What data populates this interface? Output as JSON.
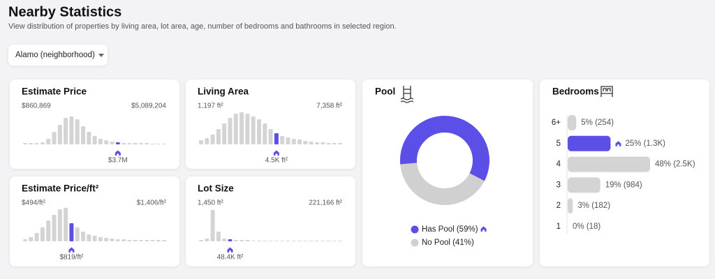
{
  "header": {
    "title": "Nearby Statistics",
    "subtitle": "View distribution of properties by living area, lot area, age, number of bedrooms and bathrooms in selected region."
  },
  "dropdown": {
    "label": "Alamo (neighborhood)"
  },
  "colors": {
    "highlight": "#5b4fe8",
    "base": "#d4d4d4"
  },
  "histograms": [
    {
      "title": "Estimate Price",
      "min_label": "$860,869",
      "max_label": "$5,089,204",
      "marker_label": "$3.7M",
      "highlight": 16,
      "values": [
        2,
        2,
        2,
        3,
        8,
        18,
        28,
        38,
        40,
        36,
        26,
        18,
        12,
        8,
        6,
        4,
        3,
        2,
        2,
        2,
        2,
        2,
        1,
        1,
        1
      ]
    },
    {
      "title": "Living Area",
      "min_label": "1,197 ft²",
      "max_label": "7,358 ft²",
      "marker_label": "4.5K ft²",
      "highlight": 13,
      "values": [
        6,
        9,
        14,
        22,
        30,
        38,
        44,
        46,
        44,
        40,
        36,
        30,
        22,
        16,
        12,
        10,
        8,
        7,
        5,
        4,
        3,
        3,
        2,
        2,
        2
      ]
    },
    {
      "title": "Estimate Price/ft²",
      "min_label": "$494/ft²",
      "max_label": "$1,406/ft²",
      "marker_label": "$819/ft²",
      "highlight": 8,
      "values": [
        3,
        6,
        12,
        20,
        30,
        38,
        46,
        48,
        26,
        20,
        14,
        10,
        8,
        6,
        5,
        4,
        3,
        3,
        2,
        2,
        2,
        2,
        2,
        2,
        2
      ]
    },
    {
      "title": "Lot Size",
      "min_label": "1,450 ft²",
      "max_label": "221,166 ft²",
      "marker_label": "48.4K ft²",
      "highlight": 5,
      "values": [
        2,
        4,
        45,
        14,
        4,
        3,
        2,
        2,
        2,
        1,
        1,
        1,
        1,
        1,
        1,
        1,
        1,
        1,
        1,
        1,
        1,
        1,
        1,
        1,
        1
      ]
    }
  ],
  "pool": {
    "title": "Pool",
    "values": [
      59,
      41
    ],
    "labels": [
      "Has Pool (59%)",
      "No Pool (41%)"
    ],
    "colors": [
      "#5b4fe8",
      "#d0d0d0"
    ],
    "highlight": 0
  },
  "bedrooms": {
    "title": "Bedrooms",
    "categories": [
      "6+",
      "5",
      "4",
      "3",
      "2",
      "1"
    ],
    "values": [
      5,
      25,
      48,
      19,
      3,
      0
    ],
    "value_labels": [
      "5% (254)",
      "25% (1.3K)",
      "48% (2.5K)",
      "19% (984)",
      "3% (182)",
      "0% (18)"
    ],
    "highlight": 1
  }
}
